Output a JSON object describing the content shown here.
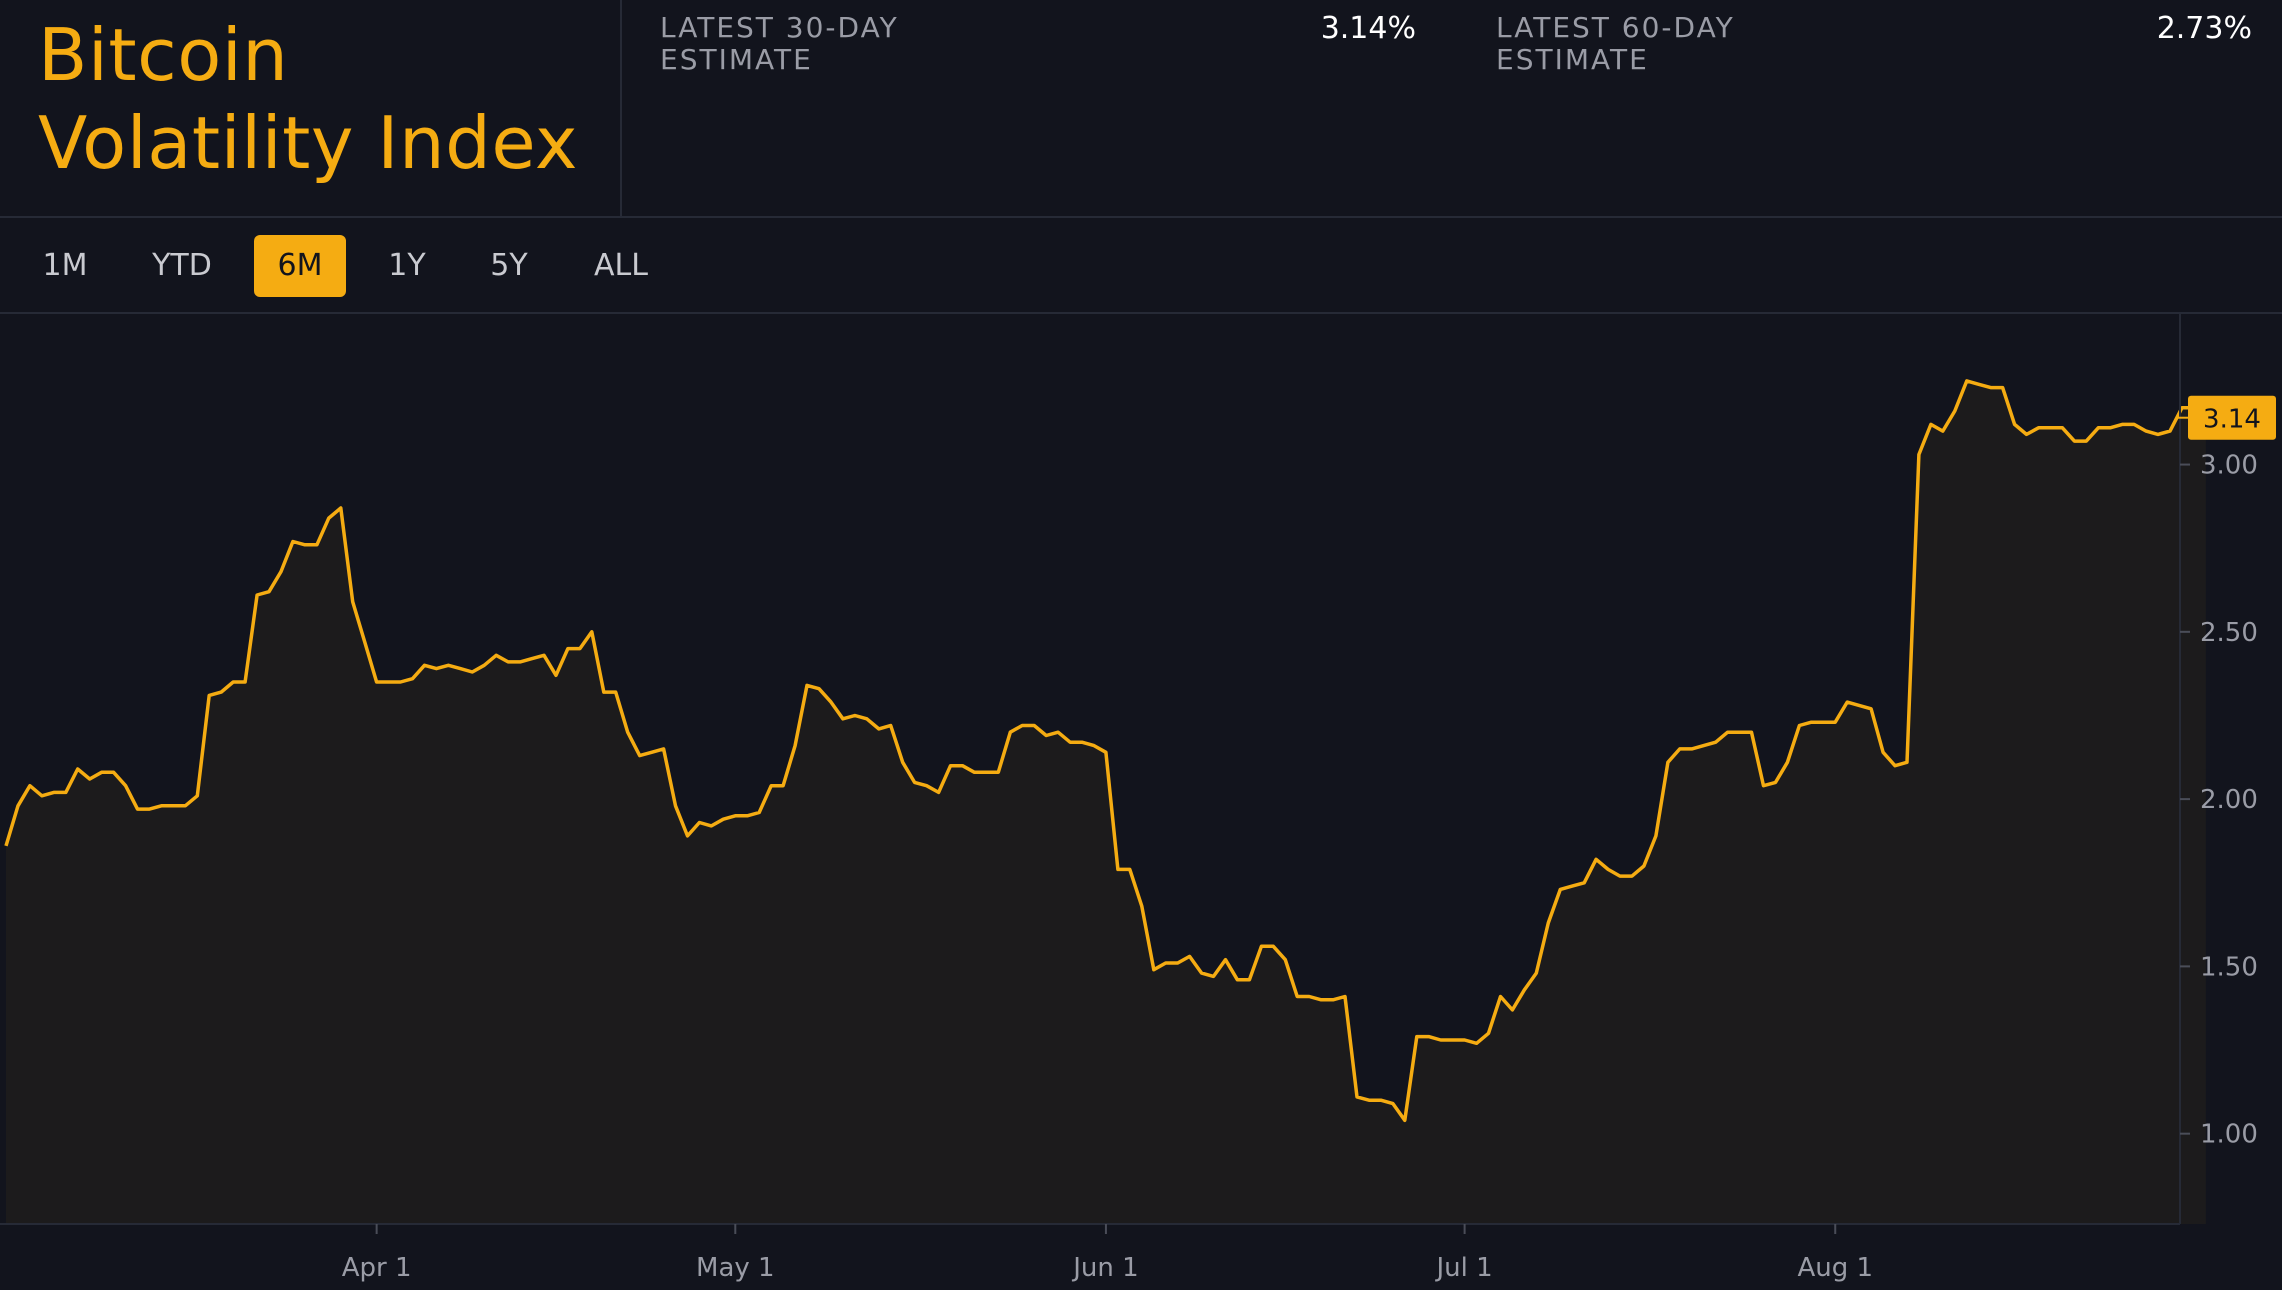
{
  "header": {
    "title_line1": "Bitcoin",
    "title_line2": "Volatility Index",
    "stats": [
      {
        "label_line1": "LATEST 30-DAY",
        "label_line2": "ESTIMATE",
        "value": "3.14%"
      },
      {
        "label_line1": "LATEST 60-DAY",
        "label_line2": "ESTIMATE",
        "value": "2.73%"
      }
    ]
  },
  "range_selector": {
    "options": [
      "1M",
      "YTD",
      "6M",
      "1Y",
      "5Y",
      "ALL"
    ],
    "selected": "6M"
  },
  "colors": {
    "accent": "#f5ac12",
    "background": "#12141d",
    "area_fill": "#1c1b1c",
    "grid_line": "#262a36"
  },
  "chart_data": {
    "type": "area",
    "title": "",
    "xlabel": "",
    "ylabel": "",
    "x_start": "2023-03-01",
    "x_end": "2023-08-29",
    "x_ticks": [
      {
        "date": "2023-04-01",
        "label": "Apr 1"
      },
      {
        "date": "2023-05-01",
        "label": "May 1"
      },
      {
        "date": "2023-06-01",
        "label": "Jun 1"
      },
      {
        "date": "2023-07-01",
        "label": "Jul 1"
      },
      {
        "date": "2023-08-01",
        "label": "Aug 1"
      }
    ],
    "ylim": [
      0.73,
      3.45
    ],
    "y_ticks": [
      1.0,
      1.5,
      2.0,
      2.5,
      3.0
    ],
    "y_tick_labels": [
      "1.00",
      "1.50",
      "2.00",
      "2.50",
      "3.00"
    ],
    "last_value_label": "3.14",
    "grid": false,
    "legend": "none",
    "series": [
      {
        "points": [
          [
            "2023-03-01",
            1.86
          ],
          [
            "2023-03-02",
            1.98
          ],
          [
            "2023-03-03",
            2.04
          ],
          [
            "2023-03-04",
            2.01
          ],
          [
            "2023-03-05",
            2.02
          ],
          [
            "2023-03-06",
            2.02
          ],
          [
            "2023-03-07",
            2.09
          ],
          [
            "2023-03-08",
            2.06
          ],
          [
            "2023-03-09",
            2.08
          ],
          [
            "2023-03-10",
            2.08
          ],
          [
            "2023-03-11",
            2.04
          ],
          [
            "2023-03-12",
            1.97
          ],
          [
            "2023-03-13",
            1.97
          ],
          [
            "2023-03-14",
            1.98
          ],
          [
            "2023-03-15",
            1.98
          ],
          [
            "2023-03-16",
            1.98
          ],
          [
            "2023-03-17",
            2.01
          ],
          [
            "2023-03-18",
            2.31
          ],
          [
            "2023-03-19",
            2.32
          ],
          [
            "2023-03-20",
            2.35
          ],
          [
            "2023-03-21",
            2.35
          ],
          [
            "2023-03-22",
            2.61
          ],
          [
            "2023-03-23",
            2.62
          ],
          [
            "2023-03-24",
            2.68
          ],
          [
            "2023-03-25",
            2.77
          ],
          [
            "2023-03-26",
            2.76
          ],
          [
            "2023-03-27",
            2.76
          ],
          [
            "2023-03-28",
            2.84
          ],
          [
            "2023-03-29",
            2.87
          ],
          [
            "2023-03-30",
            2.59
          ],
          [
            "2023-03-31",
            2.47
          ],
          [
            "2023-04-01",
            2.35
          ],
          [
            "2023-04-02",
            2.35
          ],
          [
            "2023-04-03",
            2.35
          ],
          [
            "2023-04-04",
            2.36
          ],
          [
            "2023-04-05",
            2.4
          ],
          [
            "2023-04-06",
            2.39
          ],
          [
            "2023-04-07",
            2.4
          ],
          [
            "2023-04-08",
            2.39
          ],
          [
            "2023-04-09",
            2.38
          ],
          [
            "2023-04-10",
            2.4
          ],
          [
            "2023-04-11",
            2.43
          ],
          [
            "2023-04-12",
            2.41
          ],
          [
            "2023-04-13",
            2.41
          ],
          [
            "2023-04-14",
            2.42
          ],
          [
            "2023-04-15",
            2.43
          ],
          [
            "2023-04-16",
            2.37
          ],
          [
            "2023-04-17",
            2.45
          ],
          [
            "2023-04-18",
            2.45
          ],
          [
            "2023-04-19",
            2.5
          ],
          [
            "2023-04-20",
            2.32
          ],
          [
            "2023-04-21",
            2.32
          ],
          [
            "2023-04-22",
            2.2
          ],
          [
            "2023-04-23",
            2.13
          ],
          [
            "2023-04-24",
            2.14
          ],
          [
            "2023-04-25",
            2.15
          ],
          [
            "2023-04-26",
            1.98
          ],
          [
            "2023-04-27",
            1.89
          ],
          [
            "2023-04-28",
            1.93
          ],
          [
            "2023-04-29",
            1.92
          ],
          [
            "2023-04-30",
            1.94
          ],
          [
            "2023-05-01",
            1.95
          ],
          [
            "2023-05-02",
            1.95
          ],
          [
            "2023-05-03",
            1.96
          ],
          [
            "2023-05-04",
            2.04
          ],
          [
            "2023-05-05",
            2.04
          ],
          [
            "2023-05-06",
            2.16
          ],
          [
            "2023-05-07",
            2.34
          ],
          [
            "2023-05-08",
            2.33
          ],
          [
            "2023-05-09",
            2.29
          ],
          [
            "2023-05-10",
            2.24
          ],
          [
            "2023-05-11",
            2.25
          ],
          [
            "2023-05-12",
            2.24
          ],
          [
            "2023-05-13",
            2.21
          ],
          [
            "2023-05-14",
            2.22
          ],
          [
            "2023-05-15",
            2.11
          ],
          [
            "2023-05-16",
            2.05
          ],
          [
            "2023-05-17",
            2.04
          ],
          [
            "2023-05-18",
            2.02
          ],
          [
            "2023-05-19",
            2.1
          ],
          [
            "2023-05-20",
            2.1
          ],
          [
            "2023-05-21",
            2.08
          ],
          [
            "2023-05-22",
            2.08
          ],
          [
            "2023-05-23",
            2.08
          ],
          [
            "2023-05-24",
            2.2
          ],
          [
            "2023-05-25",
            2.22
          ],
          [
            "2023-05-26",
            2.22
          ],
          [
            "2023-05-27",
            2.19
          ],
          [
            "2023-05-28",
            2.2
          ],
          [
            "2023-05-29",
            2.17
          ],
          [
            "2023-05-30",
            2.17
          ],
          [
            "2023-05-31",
            2.16
          ],
          [
            "2023-06-01",
            2.14
          ],
          [
            "2023-06-02",
            1.79
          ],
          [
            "2023-06-03",
            1.79
          ],
          [
            "2023-06-04",
            1.68
          ],
          [
            "2023-06-05",
            1.49
          ],
          [
            "2023-06-06",
            1.51
          ],
          [
            "2023-06-07",
            1.51
          ],
          [
            "2023-06-08",
            1.53
          ],
          [
            "2023-06-09",
            1.48
          ],
          [
            "2023-06-10",
            1.47
          ],
          [
            "2023-06-11",
            1.52
          ],
          [
            "2023-06-12",
            1.46
          ],
          [
            "2023-06-13",
            1.46
          ],
          [
            "2023-06-14",
            1.56
          ],
          [
            "2023-06-15",
            1.56
          ],
          [
            "2023-06-16",
            1.52
          ],
          [
            "2023-06-17",
            1.41
          ],
          [
            "2023-06-18",
            1.41
          ],
          [
            "2023-06-19",
            1.4
          ],
          [
            "2023-06-20",
            1.4
          ],
          [
            "2023-06-21",
            1.41
          ],
          [
            "2023-06-22",
            1.11
          ],
          [
            "2023-06-23",
            1.1
          ],
          [
            "2023-06-24",
            1.1
          ],
          [
            "2023-06-25",
            1.09
          ],
          [
            "2023-06-26",
            1.04
          ],
          [
            "2023-06-27",
            1.29
          ],
          [
            "2023-06-28",
            1.29
          ],
          [
            "2023-06-29",
            1.28
          ],
          [
            "2023-06-30",
            1.28
          ],
          [
            "2023-07-01",
            1.28
          ],
          [
            "2023-07-02",
            1.27
          ],
          [
            "2023-07-03",
            1.3
          ],
          [
            "2023-07-04",
            1.41
          ],
          [
            "2023-07-05",
            1.37
          ],
          [
            "2023-07-06",
            1.43
          ],
          [
            "2023-07-07",
            1.48
          ],
          [
            "2023-07-08",
            1.63
          ],
          [
            "2023-07-09",
            1.73
          ],
          [
            "2023-07-10",
            1.74
          ],
          [
            "2023-07-11",
            1.75
          ],
          [
            "2023-07-12",
            1.82
          ],
          [
            "2023-07-13",
            1.79
          ],
          [
            "2023-07-14",
            1.77
          ],
          [
            "2023-07-15",
            1.77
          ],
          [
            "2023-07-16",
            1.8
          ],
          [
            "2023-07-17",
            1.89
          ],
          [
            "2023-07-18",
            2.11
          ],
          [
            "2023-07-19",
            2.15
          ],
          [
            "2023-07-20",
            2.15
          ],
          [
            "2023-07-21",
            2.16
          ],
          [
            "2023-07-22",
            2.17
          ],
          [
            "2023-07-23",
            2.2
          ],
          [
            "2023-07-24",
            2.2
          ],
          [
            "2023-07-25",
            2.2
          ],
          [
            "2023-07-26",
            2.04
          ],
          [
            "2023-07-27",
            2.05
          ],
          [
            "2023-07-28",
            2.11
          ],
          [
            "2023-07-29",
            2.22
          ],
          [
            "2023-07-30",
            2.23
          ],
          [
            "2023-07-31",
            2.23
          ],
          [
            "2023-08-01",
            2.23
          ],
          [
            "2023-08-02",
            2.29
          ],
          [
            "2023-08-03",
            2.28
          ],
          [
            "2023-08-04",
            2.27
          ],
          [
            "2023-08-05",
            2.14
          ],
          [
            "2023-08-06",
            2.1
          ],
          [
            "2023-08-07",
            2.11
          ],
          [
            "2023-08-08",
            3.03
          ],
          [
            "2023-08-09",
            3.12
          ],
          [
            "2023-08-10",
            3.1
          ],
          [
            "2023-08-11",
            3.16
          ],
          [
            "2023-08-12",
            3.25
          ],
          [
            "2023-08-13",
            3.24
          ],
          [
            "2023-08-14",
            3.23
          ],
          [
            "2023-08-15",
            3.23
          ],
          [
            "2023-08-16",
            3.12
          ],
          [
            "2023-08-17",
            3.09
          ],
          [
            "2023-08-18",
            3.11
          ],
          [
            "2023-08-19",
            3.11
          ],
          [
            "2023-08-20",
            3.11
          ],
          [
            "2023-08-21",
            3.07
          ],
          [
            "2023-08-22",
            3.07
          ],
          [
            "2023-08-23",
            3.11
          ],
          [
            "2023-08-24",
            3.11
          ],
          [
            "2023-08-25",
            3.12
          ],
          [
            "2023-08-26",
            3.12
          ],
          [
            "2023-08-27",
            3.1
          ],
          [
            "2023-08-28",
            3.09
          ],
          [
            "2023-08-29",
            3.1
          ],
          [
            "2023-08-30",
            3.17
          ],
          [
            "2023-08-31",
            3.17
          ],
          [
            "2023-09-01",
            3.14
          ]
        ]
      }
    ]
  }
}
